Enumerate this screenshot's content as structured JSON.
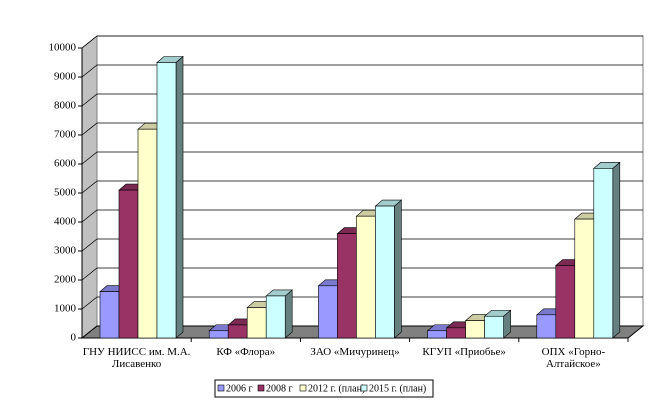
{
  "chart_data": {
    "type": "bar3d",
    "categories": [
      "ГНУ НИИСС им. М.А. Лисавенко",
      "КФ «Флора»",
      "ЗАО «Мичуринец»",
      "КГУП «Приобье»",
      "ОПХ «Горно-Алтайское»"
    ],
    "series": [
      {
        "name": "2006 г",
        "color": "#9999ff",
        "values": [
          1600,
          250,
          1800,
          250,
          800
        ]
      },
      {
        "name": "2008 г",
        "color": "#993366",
        "values": [
          5100,
          450,
          3600,
          350,
          2500
        ]
      },
      {
        "name": "2012 г. (план)",
        "color": "#ffffcc",
        "values": [
          7200,
          1050,
          4200,
          600,
          4100
        ]
      },
      {
        "name": "2015 г. (план)",
        "color": "#ccffff",
        "values": [
          9500,
          1450,
          4550,
          750,
          5850
        ]
      }
    ],
    "ylim": [
      0,
      10000
    ],
    "yticks": [
      0,
      1000,
      2000,
      3000,
      4000,
      5000,
      6000,
      7000,
      8000,
      9000,
      10000
    ],
    "grid": true,
    "legend": "bottom"
  }
}
